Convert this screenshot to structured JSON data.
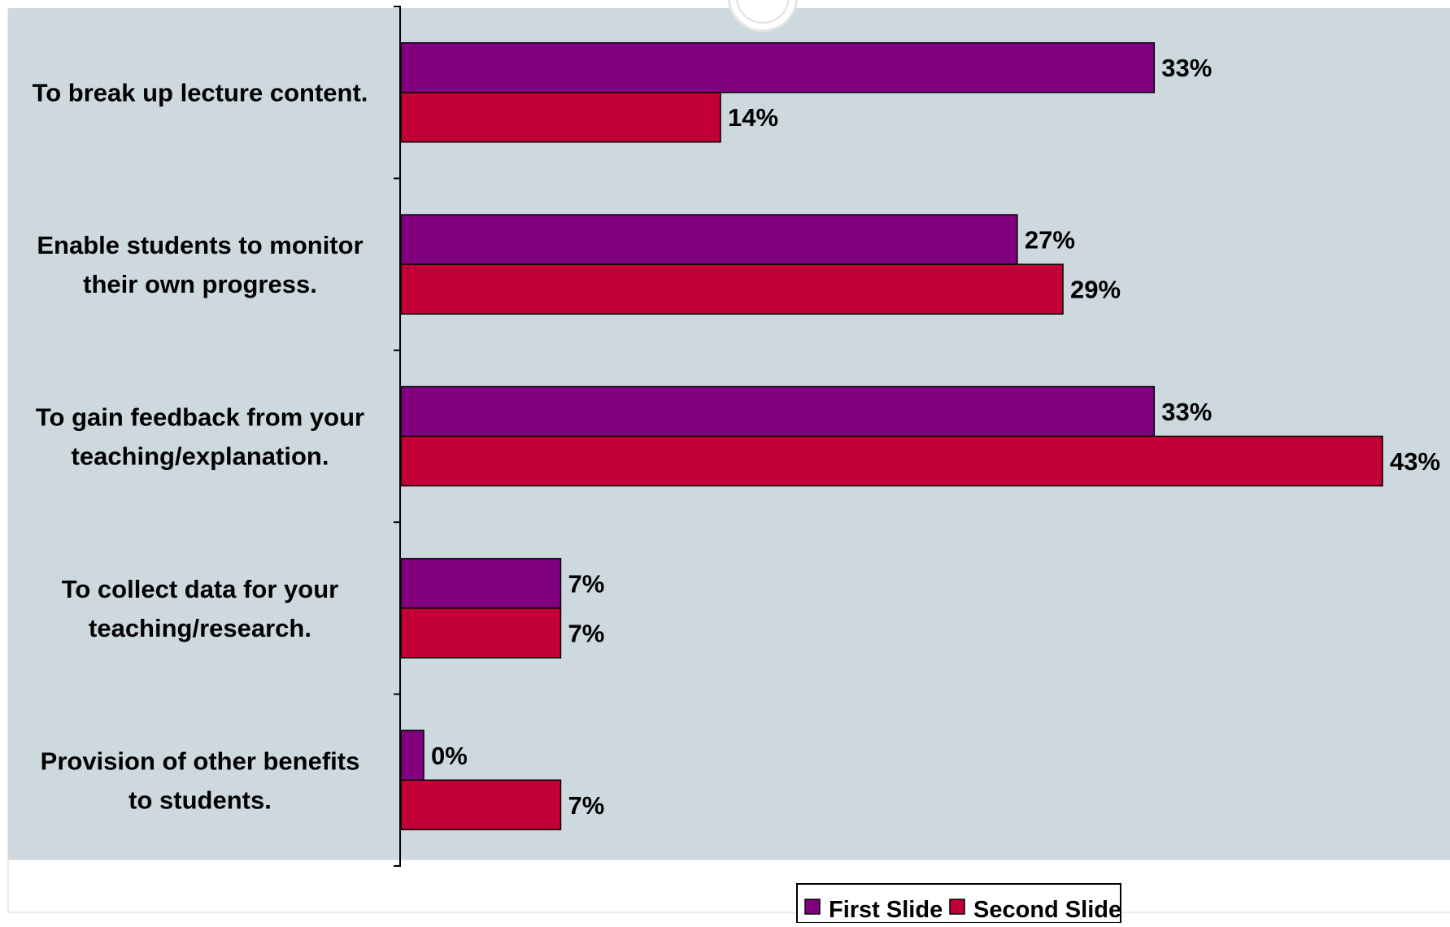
{
  "chart_data": {
    "type": "bar",
    "orientation": "horizontal",
    "categories": [
      [
        "To break up lecture content."
      ],
      [
        "Enable students to monitor",
        "their own progress."
      ],
      [
        "To gain feedback from your",
        "teaching/explanation."
      ],
      [
        "To collect data for your",
        "teaching/research."
      ],
      [
        "Provision of other benefits",
        "to students."
      ]
    ],
    "series": [
      {
        "name": "First Slide",
        "color": "#800080",
        "values": [
          33,
          27,
          33,
          7,
          0
        ],
        "labels": [
          "33%",
          "27%",
          "33%",
          "7%",
          "0%"
        ]
      },
      {
        "name": "Second Slide",
        "color": "#C00036",
        "values": [
          14,
          29,
          43,
          7,
          7
        ],
        "labels": [
          "14%",
          "29%",
          "43%",
          "7%",
          "7%"
        ]
      }
    ],
    "xlim": [
      0,
      43
    ],
    "legend_position": "bottom",
    "plot_background": "#CDD9DE",
    "title": "",
    "xlabel": "",
    "ylabel": ""
  }
}
